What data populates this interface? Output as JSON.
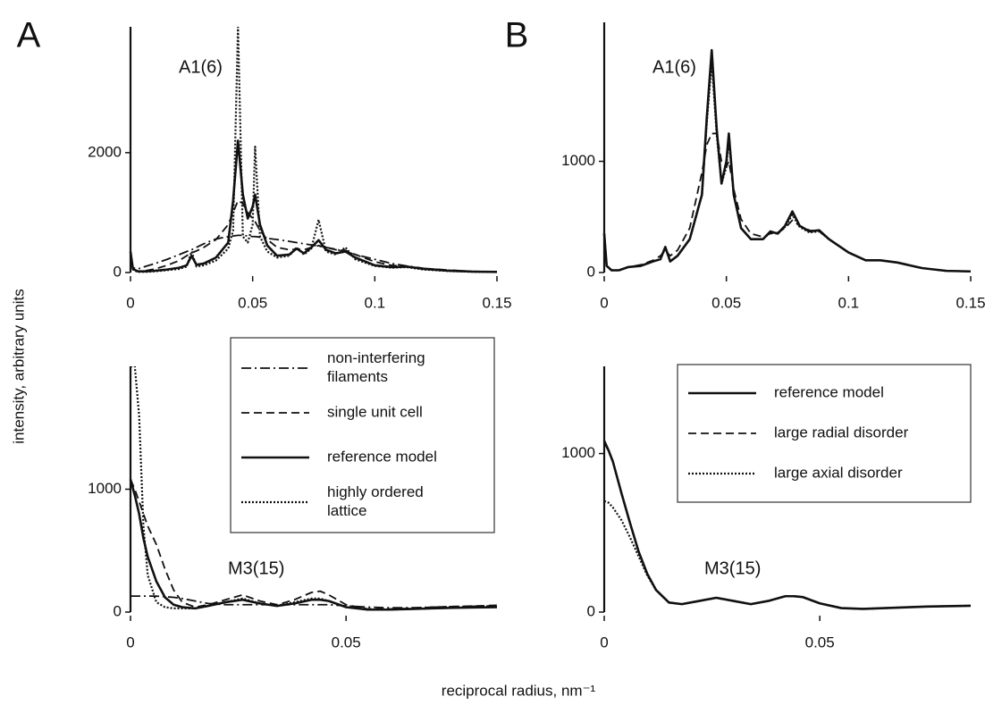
{
  "ylabel": "intensity, arbitrary units",
  "xlabel": "reciprocal radius, nm⁻¹",
  "chart_data": [
    {
      "type": "line",
      "panel": "A",
      "annotation": "A1(6)",
      "x": [
        0,
        0.001,
        0.003,
        0.006,
        0.01,
        0.015,
        0.02,
        0.023,
        0.025,
        0.027,
        0.03,
        0.035,
        0.04,
        0.042,
        0.044,
        0.046,
        0.048,
        0.05,
        0.051,
        0.053,
        0.056,
        0.06,
        0.065,
        0.068,
        0.071,
        0.074,
        0.077,
        0.08,
        0.084,
        0.088,
        0.092,
        0.1,
        0.107,
        0.113,
        0.12,
        0.13,
        0.14,
        0.15
      ],
      "xlim": [
        0,
        0.15
      ],
      "xticks": [
        0,
        0.05,
        0.1,
        0.15
      ],
      "ylim": [
        0,
        4100
      ],
      "yticks": [
        0,
        2000
      ],
      "series": [
        {
          "style": "dashdot",
          "color": "#111111",
          "values": [
            200,
            80,
            60,
            100,
            150,
            220,
            300,
            350,
            380,
            420,
            480,
            560,
            600,
            610,
            620,
            620,
            610,
            600,
            600,
            590,
            570,
            550,
            520,
            500,
            480,
            460,
            440,
            420,
            390,
            350,
            300,
            220,
            150,
            110,
            70,
            40,
            20,
            10
          ]
        },
        {
          "style": "dashed",
          "color": "#111111",
          "values": [
            250,
            60,
            20,
            30,
            60,
            120,
            200,
            280,
            330,
            360,
            420,
            550,
            800,
            1000,
            1200,
            1150,
            1000,
            900,
            850,
            700,
            550,
            420,
            380,
            390,
            380,
            420,
            450,
            420,
            380,
            370,
            300,
            180,
            120,
            100,
            70,
            40,
            20,
            10
          ]
        },
        {
          "style": "solid",
          "color": "#111111",
          "values": [
            350,
            60,
            20,
            20,
            30,
            50,
            80,
            120,
            280,
            130,
            150,
            250,
            500,
            1200,
            2200,
            1300,
            900,
            1100,
            1300,
            800,
            450,
            280,
            300,
            400,
            320,
            420,
            540,
            380,
            320,
            350,
            250,
            120,
            90,
            100,
            60,
            30,
            15,
            10
          ]
        },
        {
          "style": "dotted",
          "color": "#111111",
          "values": [
            300,
            50,
            10,
            10,
            20,
            40,
            60,
            100,
            350,
            100,
            120,
            200,
            400,
            700,
            4100,
            600,
            500,
            800,
            2100,
            600,
            350,
            250,
            280,
            420,
            300,
            400,
            880,
            350,
            300,
            420,
            220,
            110,
            80,
            90,
            50,
            25,
            12,
            8
          ]
        }
      ]
    },
    {
      "type": "line",
      "panel": "B",
      "annotation": "A1(6)",
      "x": [
        0,
        0.001,
        0.003,
        0.006,
        0.01,
        0.015,
        0.02,
        0.023,
        0.025,
        0.027,
        0.03,
        0.035,
        0.04,
        0.042,
        0.044,
        0.046,
        0.048,
        0.05,
        0.051,
        0.053,
        0.056,
        0.06,
        0.065,
        0.068,
        0.071,
        0.074,
        0.077,
        0.08,
        0.084,
        0.088,
        0.092,
        0.1,
        0.107,
        0.113,
        0.12,
        0.13,
        0.14,
        0.15
      ],
      "xlim": [
        0,
        0.15
      ],
      "xticks": [
        0,
        0.05,
        0.1,
        0.15
      ],
      "ylim": [
        0,
        2250
      ],
      "yticks": [
        0,
        1000
      ],
      "series": [
        {
          "style": "solid",
          "color": "#111111",
          "values": [
            350,
            60,
            20,
            20,
            50,
            60,
            100,
            120,
            230,
            100,
            150,
            300,
            700,
            1400,
            2000,
            1300,
            800,
            1000,
            1250,
            700,
            400,
            300,
            300,
            370,
            350,
            420,
            550,
            420,
            370,
            380,
            300,
            180,
            110,
            110,
            90,
            40,
            15,
            10
          ]
        },
        {
          "style": "dashed",
          "color": "#111111",
          "values": [
            350,
            60,
            20,
            20,
            50,
            70,
            110,
            150,
            200,
            150,
            200,
            400,
            900,
            1150,
            1250,
            1250,
            1000,
            950,
            1000,
            750,
            480,
            350,
            320,
            350,
            360,
            400,
            470,
            420,
            380,
            370,
            300,
            180,
            110,
            110,
            90,
            40,
            15,
            10
          ]
        },
        {
          "style": "dotted",
          "color": "#111111",
          "values": [
            350,
            60,
            20,
            20,
            50,
            60,
            100,
            120,
            220,
            100,
            150,
            300,
            700,
            1350,
            1900,
            1250,
            800,
            950,
            1200,
            700,
            400,
            300,
            300,
            360,
            350,
            410,
            520,
            410,
            360,
            370,
            300,
            180,
            110,
            110,
            90,
            40,
            15,
            10
          ]
        }
      ]
    },
    {
      "type": "line",
      "annotation": "M3(15)",
      "x": [
        0,
        0.001,
        0.002,
        0.003,
        0.004,
        0.006,
        0.008,
        0.01,
        0.012,
        0.015,
        0.018,
        0.022,
        0.026,
        0.03,
        0.034,
        0.038,
        0.042,
        0.044,
        0.046,
        0.05,
        0.055,
        0.06,
        0.065,
        0.07,
        0.075,
        0.085
      ],
      "xlim": [
        0,
        0.085
      ],
      "xticks": [
        0,
        0.05
      ],
      "ylim": [
        0,
        2000
      ],
      "yticks": [
        0,
        1000
      ],
      "legend": "upper right",
      "series": [
        {
          "name": "non-interfering filaments",
          "style": "dashdot",
          "color": "#111111",
          "values": [
            130,
            130,
            130,
            130,
            130,
            130,
            125,
            120,
            110,
            90,
            70,
            60,
            60,
            60,
            60,
            60,
            60,
            60,
            60,
            50,
            40,
            35,
            35,
            40,
            45,
            50
          ]
        },
        {
          "name": "single unit cell",
          "style": "dashed",
          "color": "#111111",
          "values": [
            1080,
            1000,
            900,
            800,
            700,
            550,
            350,
            180,
            80,
            40,
            60,
            100,
            140,
            90,
            60,
            100,
            160,
            170,
            140,
            60,
            25,
            25,
            30,
            40,
            45,
            55
          ]
        },
        {
          "name": "reference model",
          "style": "solid",
          "color": "#111111",
          "values": [
            1080,
            950,
            800,
            600,
            450,
            250,
            120,
            60,
            40,
            30,
            50,
            80,
            100,
            70,
            50,
            70,
            100,
            100,
            90,
            40,
            20,
            20,
            25,
            30,
            35,
            40
          ]
        },
        {
          "name": "highly ordered lattice",
          "style": "dotted",
          "color": "#111111",
          "values": [
            2000,
            2000,
            1600,
            700,
            300,
            80,
            40,
            30,
            30,
            30,
            50,
            80,
            110,
            70,
            50,
            80,
            110,
            110,
            90,
            40,
            20,
            20,
            25,
            30,
            35,
            40
          ]
        }
      ]
    },
    {
      "type": "line",
      "annotation": "M3(15)",
      "x": [
        0,
        0.001,
        0.002,
        0.003,
        0.004,
        0.006,
        0.008,
        0.01,
        0.012,
        0.015,
        0.018,
        0.022,
        0.026,
        0.03,
        0.034,
        0.038,
        0.042,
        0.044,
        0.046,
        0.05,
        0.055,
        0.06,
        0.065,
        0.07,
        0.075,
        0.085
      ],
      "xlim": [
        0,
        0.085
      ],
      "xticks": [
        0,
        0.05
      ],
      "ylim": [
        0,
        1550
      ],
      "yticks": [
        0,
        1000
      ],
      "legend": "upper right",
      "series": [
        {
          "name": "reference model",
          "style": "solid",
          "color": "#111111",
          "values": [
            1080,
            1020,
            950,
            850,
            750,
            560,
            380,
            240,
            140,
            60,
            50,
            70,
            90,
            70,
            50,
            70,
            100,
            100,
            95,
            55,
            25,
            20,
            25,
            30,
            35,
            40
          ]
        },
        {
          "name": "large radial disorder",
          "style": "dashed",
          "color": "#111111",
          "values": [
            1070,
            1015,
            945,
            845,
            745,
            555,
            378,
            238,
            140,
            60,
            50,
            70,
            90,
            70,
            50,
            70,
            100,
            100,
            95,
            55,
            25,
            20,
            25,
            30,
            35,
            40
          ]
        },
        {
          "name": "large axial disorder",
          "style": "dotted",
          "color": "#111111",
          "values": [
            700,
            690,
            660,
            620,
            580,
            470,
            350,
            230,
            140,
            60,
            50,
            70,
            90,
            70,
            50,
            70,
            100,
            100,
            95,
            55,
            25,
            20,
            25,
            30,
            35,
            40
          ]
        }
      ]
    }
  ]
}
